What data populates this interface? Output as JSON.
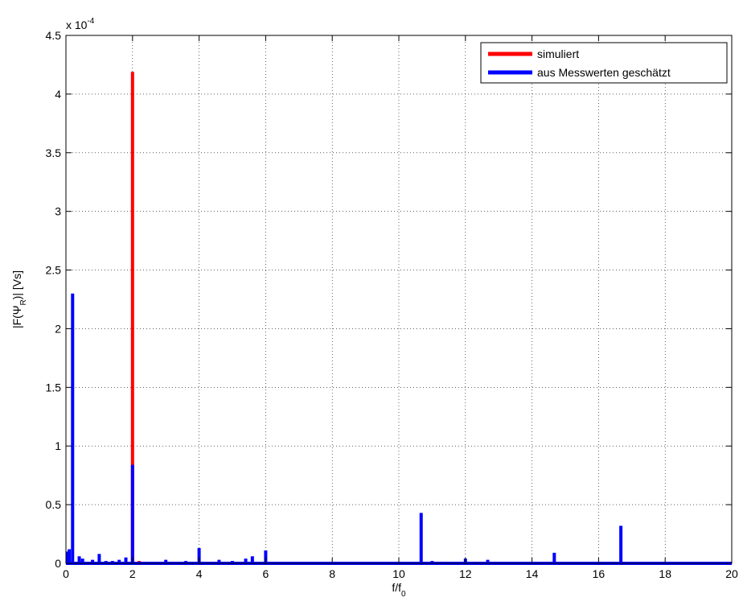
{
  "chart_data": {
    "type": "line",
    "xlabel_main": "f/f",
    "xlabel_sub": "0",
    "ylabel_pre": "|F(Ψ",
    "ylabel_sub": "R",
    "ylabel_post": ")| [Vs]",
    "y_multiplier_base": "x 10",
    "y_multiplier_exp": "-4",
    "xlim": [
      0,
      20
    ],
    "ylim": [
      0,
      4.5
    ],
    "x_ticks": [
      0,
      2,
      4,
      6,
      8,
      10,
      12,
      14,
      16,
      18,
      20
    ],
    "x_tick_labels": [
      "0",
      "2",
      "4",
      "6",
      "8",
      "10",
      "12",
      "14",
      "16",
      "18",
      "20"
    ],
    "y_ticks": [
      0,
      0.5,
      1,
      1.5,
      2,
      2.5,
      3,
      3.5,
      4,
      4.5
    ],
    "y_tick_labels": [
      "0",
      "0.5",
      "1",
      "1.5",
      "2",
      "2.5",
      "3",
      "3.5",
      "4",
      "4.5"
    ],
    "grid": true,
    "legend_position": "top-right",
    "series": [
      {
        "name": "simuliert",
        "color": "#ff0000",
        "spikes": [
          {
            "x": 2.0,
            "y": 4.19
          },
          {
            "x": 2.2,
            "y": 0.02
          }
        ]
      },
      {
        "name": "aus Messwerten geschätzt",
        "color": "#0000ff",
        "spikes": [
          {
            "x": 0.05,
            "y": 0.1
          },
          {
            "x": 0.1,
            "y": 0.12
          },
          {
            "x": 0.2,
            "y": 2.3
          },
          {
            "x": 0.4,
            "y": 0.06
          },
          {
            "x": 0.5,
            "y": 0.04
          },
          {
            "x": 0.8,
            "y": 0.03
          },
          {
            "x": 1.0,
            "y": 0.08
          },
          {
            "x": 1.2,
            "y": 0.02
          },
          {
            "x": 1.4,
            "y": 0.02
          },
          {
            "x": 1.6,
            "y": 0.03
          },
          {
            "x": 1.8,
            "y": 0.05
          },
          {
            "x": 2.0,
            "y": 0.84
          },
          {
            "x": 3.0,
            "y": 0.03
          },
          {
            "x": 3.6,
            "y": 0.02
          },
          {
            "x": 4.0,
            "y": 0.13
          },
          {
            "x": 4.6,
            "y": 0.03
          },
          {
            "x": 5.0,
            "y": 0.02
          },
          {
            "x": 5.4,
            "y": 0.04
          },
          {
            "x": 5.6,
            "y": 0.06
          },
          {
            "x": 6.0,
            "y": 0.11
          },
          {
            "x": 7.0,
            "y": 0.01
          },
          {
            "x": 8.0,
            "y": 0.01
          },
          {
            "x": 9.0,
            "y": 0.01
          },
          {
            "x": 10.67,
            "y": 0.43
          },
          {
            "x": 11.0,
            "y": 0.02
          },
          {
            "x": 12.0,
            "y": 0.04
          },
          {
            "x": 12.67,
            "y": 0.03
          },
          {
            "x": 13.0,
            "y": 0.01
          },
          {
            "x": 14.67,
            "y": 0.09
          },
          {
            "x": 15.0,
            "y": 0.01
          },
          {
            "x": 16.67,
            "y": 0.32
          },
          {
            "x": 17.0,
            "y": 0.01
          },
          {
            "x": 18.67,
            "y": 0.01
          }
        ]
      }
    ]
  }
}
